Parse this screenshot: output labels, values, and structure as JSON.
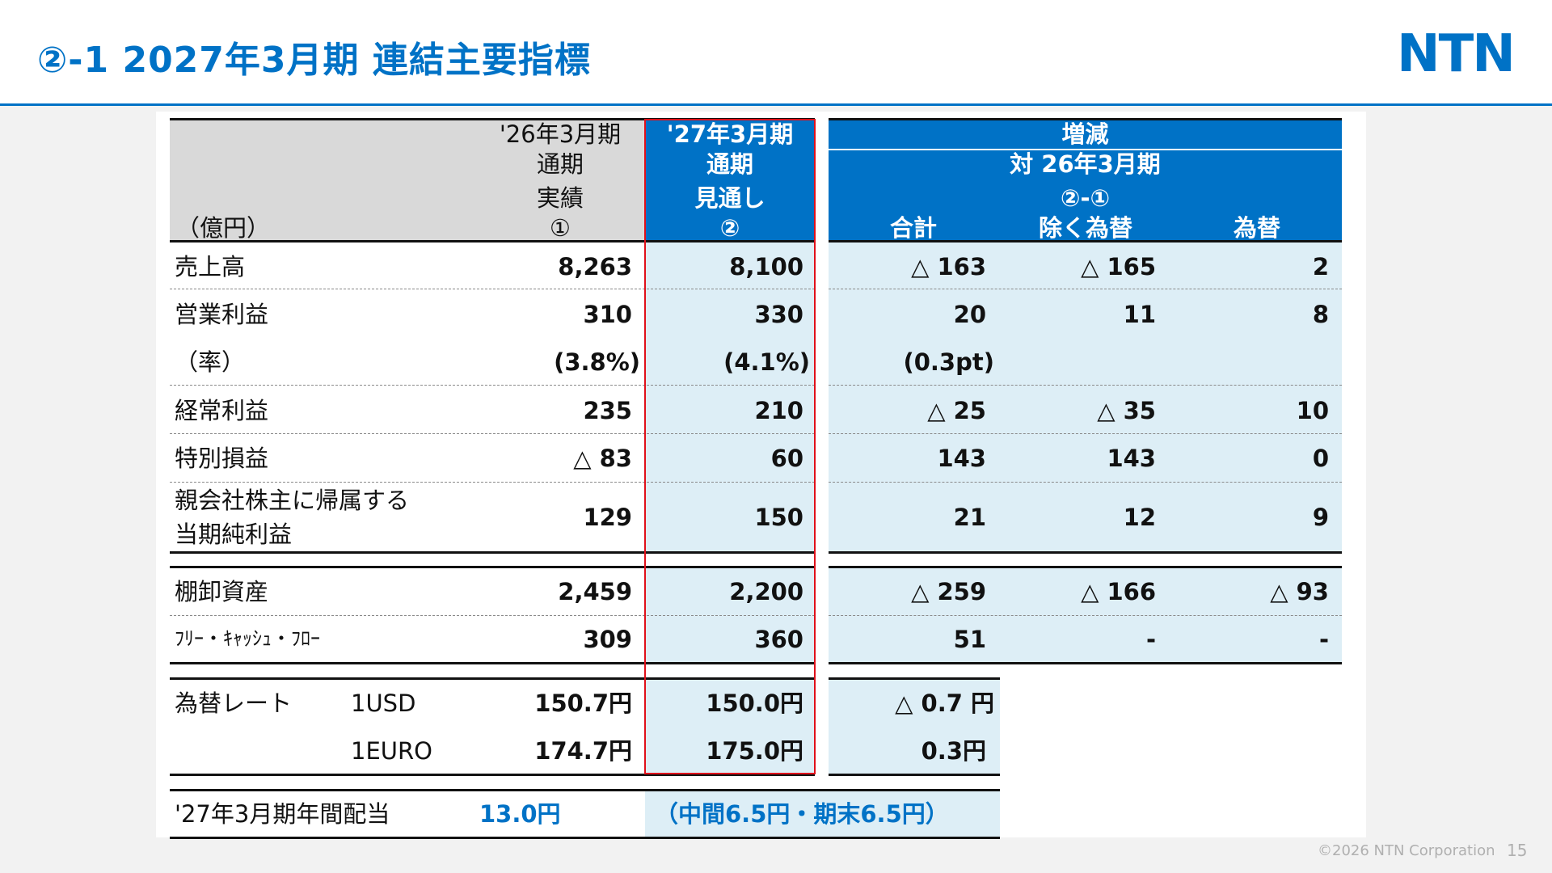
{
  "title": "②-1 2027年3月期 連結主要指標",
  "logo": "NTN",
  "unit": "（億円）",
  "headers": {
    "prev_l1": "'26年3月期",
    "prev_l2": "通期",
    "prev_l3": "実績",
    "prev_l4": "①",
    "cur_l1": "'27年3月期",
    "cur_l2": "通期",
    "cur_l3": "見通し",
    "cur_l4": "②",
    "chg_l1": "増減",
    "chg_l2": "対 26年3月期",
    "chg_l3": "②-①",
    "chg_total": "合計",
    "chg_exfx": "除く為替",
    "chg_fx": "為替"
  },
  "rows": [
    {
      "label": "売上高",
      "prev": "8,263",
      "cur": "8,100",
      "total": "△ 163",
      "exfx": "△ 165",
      "fx": "2"
    },
    {
      "label": "営業利益",
      "prev": "310",
      "cur": "330",
      "total": "20",
      "exfx": "11",
      "fx": "8"
    },
    {
      "label": "（率）",
      "prev": "(3.8%)",
      "cur": "(4.1%)",
      "total": "(0.3pt)",
      "exfx": "",
      "fx": ""
    },
    {
      "label": "経常利益",
      "prev": "235",
      "cur": "210",
      "total": "△ 25",
      "exfx": "△ 35",
      "fx": "10"
    },
    {
      "label": "特別損益",
      "prev": "△ 83",
      "cur": "60",
      "total": "143",
      "exfx": "143",
      "fx": "0"
    },
    {
      "label_l1": "親会社株主に帰属する",
      "label_l2": "当期純利益",
      "prev": "129",
      "cur": "150",
      "total": "21",
      "exfx": "12",
      "fx": "9"
    }
  ],
  "rows2": [
    {
      "label": "棚卸資産",
      "prev": "2,459",
      "cur": "2,200",
      "total": "△ 259",
      "exfx": "△ 166",
      "fx": "△ 93"
    },
    {
      "label": "ﾌﾘｰ・ｷｬｯｼｭ・ﾌﾛｰ",
      "prev": "309",
      "cur": "360",
      "total": "51",
      "exfx": "-",
      "fx": "-"
    }
  ],
  "fx": {
    "label": "為替レート",
    "usd": {
      "name": "1USD",
      "prev": "150.7円",
      "cur": "150.0円",
      "total": "△ 0.7 円"
    },
    "euro": {
      "name": "1EURO",
      "prev": "174.7円",
      "cur": "175.0円",
      "total": "0.3円"
    }
  },
  "dividend": {
    "label": "'27年3月期年間配当",
    "value": "13.0円",
    "detail": "（中間6.5円・期末6.5円）"
  },
  "footer": "©2026 NTN Corporation",
  "page_number": "15",
  "colors": {
    "brand": "#0072c6",
    "highlight": "#e0101a",
    "light_fill": "#ddeef6",
    "header_gray": "#d9d9d9"
  }
}
